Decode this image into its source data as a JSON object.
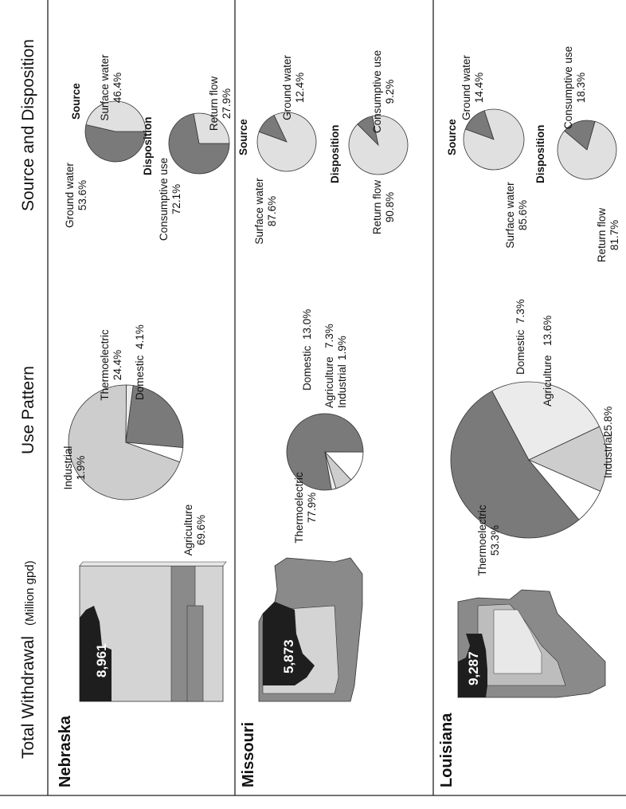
{
  "headers": {
    "total": "Total Withdrawal",
    "total_unit": "(Million gpd)",
    "use": "Use Pattern",
    "source": "Source and Disposition"
  },
  "colors": {
    "agriculture": "#cdcdcd",
    "industrial": "#ebebeb",
    "thermoelectric": "#7a7a7a",
    "domestic": "#ffffff",
    "ground_water": "#7a7a7a",
    "surface_water": "#e0e0e0",
    "consumptive_use": "#7a7a7a",
    "return_flow": "#e0e0e0",
    "map_dark": "#1e1e1e",
    "map_light": "#d0d0d0",
    "map_mid": "#888888"
  },
  "source_heading": "Source",
  "disposition_heading": "Disposition",
  "chart_data": [
    {
      "state": "Nebraska",
      "total_withdrawal": "8,961",
      "use_pattern": {
        "type": "pie",
        "slices": [
          {
            "name": "Agriculture",
            "value": 69.6,
            "label": "69.6%"
          },
          {
            "name": "Industrial",
            "value": 1.9,
            "label": "1.9%"
          },
          {
            "name": "Thermoelectric",
            "value": 24.4,
            "label": "24.4%"
          },
          {
            "name": "Domestic",
            "value": 4.1,
            "label": "4.1%"
          }
        ]
      },
      "source": {
        "type": "pie",
        "slices": [
          {
            "name": "Ground water",
            "value": 53.6,
            "label": "53.6%"
          },
          {
            "name": "Surface water",
            "value": 46.4,
            "label": "46.4%"
          }
        ]
      },
      "disposition": {
        "type": "pie",
        "slices": [
          {
            "name": "Consumptive use",
            "value": 72.1,
            "label": "72.1%"
          },
          {
            "name": "Return flow",
            "value": 27.9,
            "label": "27.9%"
          }
        ]
      }
    },
    {
      "state": "Missouri",
      "total_withdrawal": "5,873",
      "use_pattern": {
        "type": "pie",
        "slices": [
          {
            "name": "Thermoelectric",
            "value": 77.9,
            "label": "77.9%"
          },
          {
            "name": "Domestic",
            "value": 13.0,
            "label": "13.0%"
          },
          {
            "name": "Agriculture",
            "value": 7.3,
            "label": "7.3%"
          },
          {
            "name": "Industrial",
            "value": 1.9,
            "label": "1.9%"
          }
        ]
      },
      "source": {
        "type": "pie",
        "slices": [
          {
            "name": "Ground water",
            "value": 12.4,
            "label": "12.4%"
          },
          {
            "name": "Surface water",
            "value": 87.6,
            "label": "87.6%"
          }
        ]
      },
      "disposition": {
        "type": "pie",
        "slices": [
          {
            "name": "Consumptive use",
            "value": 9.2,
            "label": "9.2%"
          },
          {
            "name": "Return flow",
            "value": 90.8,
            "label": "90.8%"
          }
        ]
      }
    },
    {
      "state": "Louisiana",
      "total_withdrawal": "9,287",
      "use_pattern": {
        "type": "pie",
        "slices": [
          {
            "name": "Thermoelectric",
            "value": 53.3,
            "label": "53.3%"
          },
          {
            "name": "Industrial",
            "value": 25.8,
            "label": "25.8%"
          },
          {
            "name": "Agriculture",
            "value": 13.6,
            "label": "13.6%"
          },
          {
            "name": "Domestic",
            "value": 7.3,
            "label": "7.3%"
          }
        ]
      },
      "source": {
        "type": "pie",
        "slices": [
          {
            "name": "Ground water",
            "value": 14.4,
            "label": "14.4%"
          },
          {
            "name": "Surface water",
            "value": 85.6,
            "label": "85.6%"
          }
        ]
      },
      "disposition": {
        "type": "pie",
        "slices": [
          {
            "name": "Consumptive use",
            "value": 18.3,
            "label": "18.3%"
          },
          {
            "name": "Return flow",
            "value": 81.7,
            "label": "81.7%"
          }
        ]
      }
    }
  ]
}
